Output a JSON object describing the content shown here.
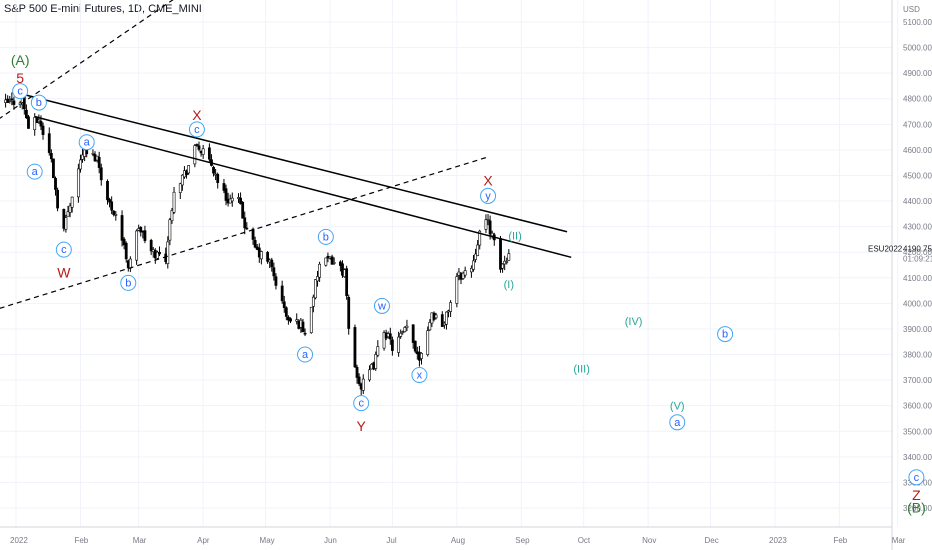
{
  "header": {
    "title": "S&P 500 E-mini Futures, 1D, CME_MINI"
  },
  "chart_data": {
    "type": "candlestick",
    "currency": "USD",
    "symbol": "ESU2022",
    "last_price": "4190.75",
    "countdown": "01:09:21",
    "ylim": [
      3150,
      5150
    ],
    "y_ticks": [
      "5100.00",
      "5000.00",
      "4900.00",
      "4800.00",
      "4700.00",
      "4600.00",
      "4500.00",
      "4400.00",
      "4300.00",
      "4200.00",
      "4100.00",
      "4000.00",
      "3900.00",
      "3800.00",
      "3700.00",
      "3600.00",
      "3500.00",
      "3400.00",
      "3300.00",
      "3200.00"
    ],
    "x_range": [
      "2022-01-01",
      "2023-03-31"
    ],
    "x_ticks": [
      {
        "label": "2022",
        "date": "2022-01-01"
      },
      {
        "label": "Feb",
        "date": "2022-02-01"
      },
      {
        "label": "Mar",
        "date": "2022-03-01"
      },
      {
        "label": "Apr",
        "date": "2022-04-01"
      },
      {
        "label": "May",
        "date": "2022-05-01"
      },
      {
        "label": "Jun",
        "date": "2022-06-01"
      },
      {
        "label": "Jul",
        "date": "2022-07-01"
      },
      {
        "label": "Aug",
        "date": "2022-08-01"
      },
      {
        "label": "Sep",
        "date": "2022-09-01"
      },
      {
        "label": "Oct",
        "date": "2022-10-01"
      },
      {
        "label": "Nov",
        "date": "2022-11-01"
      },
      {
        "label": "Dec",
        "date": "2022-12-01"
      },
      {
        "label": "2023",
        "date": "2023-01-01"
      },
      {
        "label": "Feb",
        "date": "2023-02-01"
      },
      {
        "label": "Mar",
        "date": "2023-03-01"
      }
    ],
    "close_path": [
      [
        "2021-12-27",
        4780
      ],
      [
        "2022-01-04",
        4800
      ],
      [
        "2022-01-07",
        4690
      ],
      [
        "2022-01-12",
        4720
      ],
      [
        "2022-01-18",
        4560
      ],
      [
        "2022-01-21",
        4390
      ],
      [
        "2022-01-24",
        4290
      ],
      [
        "2022-01-28",
        4430
      ],
      [
        "2022-02-02",
        4590
      ],
      [
        "2022-02-09",
        4570
      ],
      [
        "2022-02-14",
        4400
      ],
      [
        "2022-02-18",
        4350
      ],
      [
        "2022-02-24",
        4150
      ],
      [
        "2022-03-01",
        4300
      ],
      [
        "2022-03-07",
        4200
      ],
      [
        "2022-03-14",
        4180
      ],
      [
        "2022-03-18",
        4450
      ],
      [
        "2022-03-24",
        4520
      ],
      [
        "2022-03-29",
        4620
      ],
      [
        "2022-04-05",
        4540
      ],
      [
        "2022-04-12",
        4410
      ],
      [
        "2022-04-18",
        4400
      ],
      [
        "2022-04-22",
        4280
      ],
      [
        "2022-04-27",
        4200
      ],
      [
        "2022-05-03",
        4160
      ],
      [
        "2022-05-09",
        4000
      ],
      [
        "2022-05-12",
        3930
      ],
      [
        "2022-05-18",
        3920
      ],
      [
        "2022-05-20",
        3880
      ],
      [
        "2022-05-27",
        4150
      ],
      [
        "2022-06-02",
        4170
      ],
      [
        "2022-06-08",
        4120
      ],
      [
        "2022-06-10",
        3900
      ],
      [
        "2022-06-13",
        3750
      ],
      [
        "2022-06-16",
        3670
      ],
      [
        "2022-06-22",
        3760
      ],
      [
        "2022-06-27",
        3900
      ],
      [
        "2022-07-01",
        3830
      ],
      [
        "2022-07-08",
        3900
      ],
      [
        "2022-07-14",
        3790
      ],
      [
        "2022-07-20",
        3960
      ],
      [
        "2022-07-26",
        3920
      ],
      [
        "2022-08-01",
        4100
      ],
      [
        "2022-08-08",
        4140
      ],
      [
        "2022-08-12",
        4280
      ],
      [
        "2022-08-16",
        4320
      ],
      [
        "2022-08-19",
        4230
      ],
      [
        "2022-08-22",
        4140
      ],
      [
        "2022-08-26",
        4190
      ]
    ],
    "annotations": [
      {
        "text": "(A)",
        "date": "2022-01-03",
        "price": 4950,
        "style": "green-paren"
      },
      {
        "text": "5",
        "date": "2022-01-03",
        "price": 4880,
        "style": "red"
      },
      {
        "text": "c",
        "date": "2022-01-03",
        "price": 4830,
        "style": "blue-circle"
      },
      {
        "text": "b",
        "date": "2022-01-12",
        "price": 4785,
        "style": "blue-circle"
      },
      {
        "text": "a",
        "date": "2022-01-10",
        "price": 4515,
        "style": "blue-circle"
      },
      {
        "text": "c",
        "date": "2022-01-24",
        "price": 4210,
        "style": "blue-circle"
      },
      {
        "text": "W",
        "date": "2022-01-24",
        "price": 4120,
        "style": "red"
      },
      {
        "text": "a",
        "date": "2022-02-04",
        "price": 4630,
        "style": "blue-circle"
      },
      {
        "text": "b",
        "date": "2022-02-24",
        "price": 4080,
        "style": "blue-circle"
      },
      {
        "text": "X",
        "date": "2022-03-29",
        "price": 4735,
        "style": "red"
      },
      {
        "text": "c",
        "date": "2022-03-29",
        "price": 4680,
        "style": "blue-circle"
      },
      {
        "text": "b",
        "date": "2022-05-30",
        "price": 4260,
        "style": "blue-circle"
      },
      {
        "text": "a",
        "date": "2022-05-20",
        "price": 3800,
        "style": "blue-circle"
      },
      {
        "text": "w",
        "date": "2022-06-26",
        "price": 3990,
        "style": "blue-circle"
      },
      {
        "text": "c",
        "date": "2022-06-16",
        "price": 3610,
        "style": "blue-circle"
      },
      {
        "text": "Y",
        "date": "2022-06-16",
        "price": 3520,
        "style": "red"
      },
      {
        "text": "x",
        "date": "2022-07-14",
        "price": 3720,
        "style": "blue-circle"
      },
      {
        "text": "X",
        "date": "2022-08-16",
        "price": 4480,
        "style": "red"
      },
      {
        "text": "y",
        "date": "2022-08-16",
        "price": 4420,
        "style": "blue-circle"
      },
      {
        "text": "(II)",
        "date": "2022-08-29",
        "price": 4265,
        "style": "teal"
      },
      {
        "text": "(I)",
        "date": "2022-08-26",
        "price": 4075,
        "style": "teal"
      },
      {
        "text": "(III)",
        "date": "2022-09-30",
        "price": 3745,
        "style": "teal"
      },
      {
        "text": "(IV)",
        "date": "2022-10-25",
        "price": 3930,
        "style": "teal"
      },
      {
        "text": "(V)",
        "date": "2022-11-15",
        "price": 3600,
        "style": "teal"
      },
      {
        "text": "a",
        "date": "2022-11-15",
        "price": 3535,
        "style": "blue-circle"
      },
      {
        "text": "b",
        "date": "2022-12-08",
        "price": 3880,
        "style": "blue-circle"
      },
      {
        "text": "c",
        "date": "2023-03-10",
        "price": 3320,
        "style": "blue-circle"
      },
      {
        "text": "Z",
        "date": "2023-03-10",
        "price": 3250,
        "style": "red"
      },
      {
        "text": "(B)",
        "date": "2023-03-10",
        "price": 3200,
        "style": "green-paren"
      }
    ],
    "trend_lines": [
      {
        "style": "solid",
        "from": [
          "2022-01-03",
          4820
        ],
        "to": [
          "2022-09-23",
          4280
        ]
      },
      {
        "style": "solid",
        "from": [
          "2022-01-10",
          4730
        ],
        "to": [
          "2022-09-25",
          4180
        ]
      },
      {
        "style": "dashed",
        "from": [
          "2021-12-20",
          4700
        ],
        "to": [
          "2022-04-05",
          5290
        ]
      },
      {
        "style": "dashed",
        "from": [
          "2021-12-20",
          3970
        ],
        "to": [
          "2022-08-15",
          4570
        ]
      }
    ]
  }
}
